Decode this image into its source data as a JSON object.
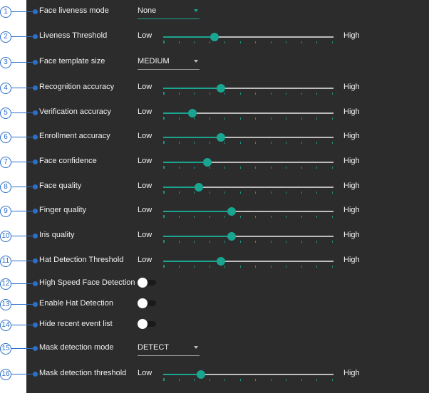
{
  "low_label": "Low",
  "high_label": "High",
  "accent_color": "#1aa591",
  "callout_color": "#2b6fc7",
  "settings": [
    {
      "num": "1",
      "label": "Face liveness mode",
      "type": "select",
      "value": "None",
      "accent": true
    },
    {
      "num": "2",
      "label": "Liveness Threshold",
      "type": "slider",
      "value": 0.3
    },
    {
      "num": "3",
      "label": "Face template size",
      "type": "select",
      "value": "MEDIUM",
      "accent": false
    },
    {
      "num": "4",
      "label": "Recognition accuracy",
      "type": "slider",
      "value": 0.34
    },
    {
      "num": "5",
      "label": "Verification accuracy",
      "type": "slider",
      "value": 0.17
    },
    {
      "num": "6",
      "label": "Enrollment accuracy",
      "type": "slider",
      "value": 0.34
    },
    {
      "num": "7",
      "label": "Face confidence",
      "type": "slider",
      "value": 0.26
    },
    {
      "num": "8",
      "label": "Face quality",
      "type": "slider",
      "value": 0.21
    },
    {
      "num": "9",
      "label": "Finger quality",
      "type": "slider",
      "value": 0.4
    },
    {
      "num": "10",
      "label": "Iris quality",
      "type": "slider",
      "value": 0.4
    },
    {
      "num": "11",
      "label": "Hat Detection Threshold",
      "type": "slider",
      "value": 0.34
    },
    {
      "num": "12",
      "label": "High Speed Face Detection",
      "type": "toggle",
      "on": false
    },
    {
      "num": "13",
      "label": "Enable Hat Detection",
      "type": "toggle",
      "on": false
    },
    {
      "num": "14",
      "label": "Hide recent event list",
      "type": "toggle",
      "on": false
    },
    {
      "num": "15",
      "label": "Mask detection mode",
      "type": "select",
      "value": "DETECT",
      "accent": false
    },
    {
      "num": "16",
      "label": "Mask detection threshold",
      "type": "slider",
      "value": 0.22
    }
  ]
}
